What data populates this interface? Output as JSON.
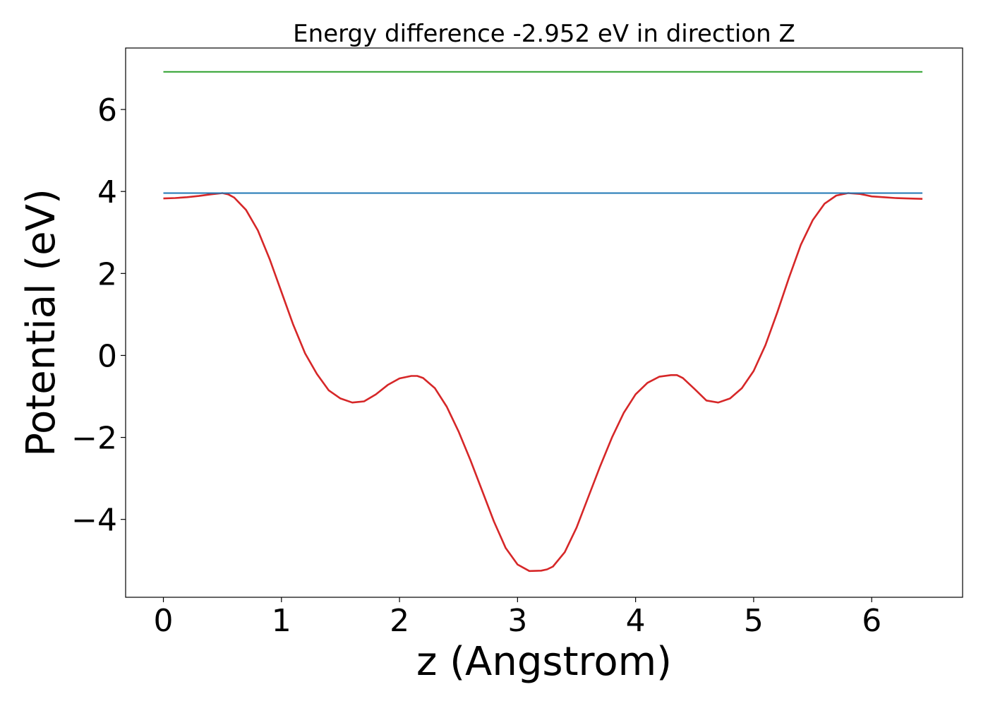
{
  "chart_data": {
    "type": "line",
    "title": "Energy difference -2.952 eV in direction Z",
    "xlabel": "z (Angstrom)",
    "ylabel": "Potential (eV)",
    "xlim": [
      -0.32,
      6.77
    ],
    "ylim": [
      -5.9,
      7.5
    ],
    "xticks": [
      0,
      1,
      2,
      3,
      4,
      5,
      6
    ],
    "xtick_labels": [
      "0",
      "1",
      "2",
      "3",
      "4",
      "5",
      "6"
    ],
    "yticks": [
      -4,
      -2,
      0,
      2,
      4,
      6
    ],
    "ytick_labels": [
      "−4",
      "−2",
      "0",
      "2",
      "4",
      "6"
    ],
    "grid": false,
    "legend": false,
    "series": [
      {
        "color": "#d62728",
        "x": [
          0.0,
          0.1,
          0.2,
          0.3,
          0.4,
          0.5,
          0.55,
          0.6,
          0.7,
          0.8,
          0.9,
          1.0,
          1.1,
          1.2,
          1.3,
          1.4,
          1.5,
          1.6,
          1.7,
          1.8,
          1.9,
          2.0,
          2.1,
          2.15,
          2.2,
          2.3,
          2.4,
          2.5,
          2.6,
          2.7,
          2.8,
          2.9,
          3.0,
          3.1,
          3.2,
          3.25,
          3.3,
          3.4,
          3.5,
          3.6,
          3.7,
          3.8,
          3.9,
          4.0,
          4.1,
          4.2,
          4.3,
          4.35,
          4.4,
          4.5,
          4.6,
          4.7,
          4.8,
          4.9,
          5.0,
          5.1,
          5.2,
          5.3,
          5.4,
          5.5,
          5.6,
          5.7,
          5.8,
          5.9,
          5.95,
          6.0,
          6.1,
          6.2,
          6.3,
          6.43
        ],
        "y": [
          3.83,
          3.84,
          3.86,
          3.89,
          3.93,
          3.96,
          3.93,
          3.85,
          3.55,
          3.05,
          2.35,
          1.55,
          0.75,
          0.05,
          -0.45,
          -0.85,
          -1.05,
          -1.15,
          -1.12,
          -0.95,
          -0.72,
          -0.56,
          -0.5,
          -0.5,
          -0.55,
          -0.8,
          -1.25,
          -1.85,
          -2.55,
          -3.3,
          -4.05,
          -4.7,
          -5.1,
          -5.26,
          -5.25,
          -5.22,
          -5.15,
          -4.8,
          -4.2,
          -3.45,
          -2.7,
          -2.0,
          -1.4,
          -0.95,
          -0.67,
          -0.52,
          -0.48,
          -0.48,
          -0.55,
          -0.82,
          -1.1,
          -1.15,
          -1.05,
          -0.8,
          -0.38,
          0.25,
          1.05,
          1.9,
          2.7,
          3.3,
          3.7,
          3.9,
          3.96,
          3.94,
          3.91,
          3.88,
          3.86,
          3.84,
          3.83,
          3.82
        ]
      },
      {
        "color": "#1f77b4",
        "x": [
          0.0,
          6.43
        ],
        "y": [
          3.96,
          3.96
        ]
      },
      {
        "color": "#2ca02c",
        "x": [
          0.0,
          6.43
        ],
        "y": [
          6.92,
          6.92
        ]
      }
    ]
  }
}
